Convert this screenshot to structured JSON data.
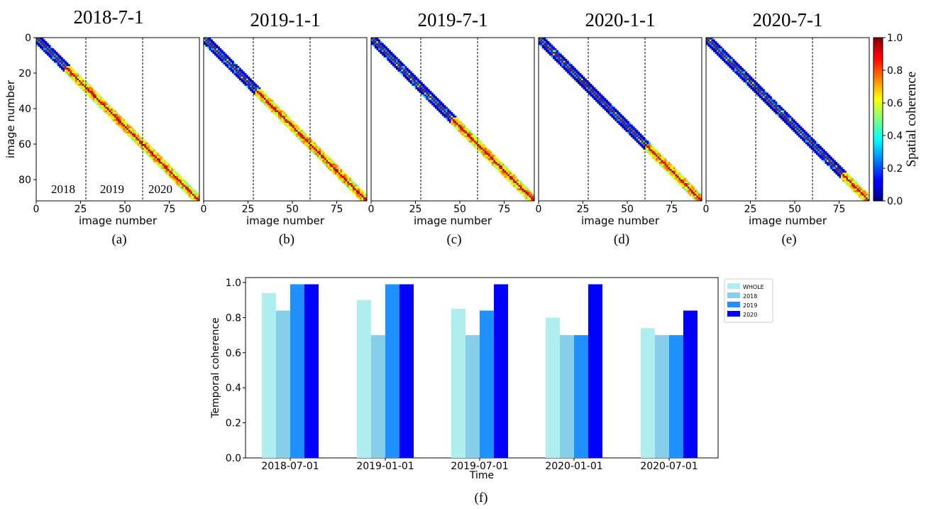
{
  "chart_data": [
    {
      "type": "heatmap",
      "panel": "(a)",
      "title": "2018-7-1",
      "xlabel": "image number",
      "ylabel": "image number",
      "xticks": [
        "0",
        "25",
        "50",
        "75"
      ],
      "yticks": [
        "0",
        "20",
        "40",
        "60",
        "80"
      ],
      "n_images": 92,
      "dashed_lines_at": [
        28,
        60
      ],
      "low_coherence_until": 16,
      "year_labels": [
        "2018",
        "2019",
        "2020"
      ]
    },
    {
      "type": "heatmap",
      "panel": "(b)",
      "title": "2019-1-1",
      "xlabel": "image number",
      "xticks": [
        "0",
        "25",
        "50",
        "75"
      ],
      "n_images": 92,
      "dashed_lines_at": [
        28,
        60
      ],
      "low_coherence_until": 29
    },
    {
      "type": "heatmap",
      "panel": "(c)",
      "title": "2019-7-1",
      "xlabel": "image number",
      "xticks": [
        "0",
        "25",
        "50",
        "75"
      ],
      "n_images": 92,
      "dashed_lines_at": [
        28,
        60
      ],
      "low_coherence_until": 45
    },
    {
      "type": "heatmap",
      "panel": "(d)",
      "title": "2020-1-1",
      "xlabel": "image number",
      "xticks": [
        "0",
        "25",
        "50",
        "75"
      ],
      "n_images": 92,
      "dashed_lines_at": [
        28,
        60
      ],
      "low_coherence_until": 60
    },
    {
      "type": "heatmap",
      "panel": "(e)",
      "title": "2020-7-1",
      "xlabel": "image number",
      "xticks": [
        "0",
        "25",
        "50",
        "75"
      ],
      "n_images": 92,
      "dashed_lines_at": [
        28,
        60
      ],
      "low_coherence_until": 76
    },
    {
      "type": "bar",
      "panel": "(f)",
      "categories": [
        "2018-07-01",
        "2019-01-01",
        "2019-07-01",
        "2020-01-01",
        "2020-07-01"
      ],
      "series": [
        {
          "name": "WHOLE",
          "values": [
            0.94,
            0.9,
            0.85,
            0.8,
            0.74
          ]
        },
        {
          "name": "2018",
          "values": [
            0.84,
            0.7,
            0.7,
            0.7,
            0.7
          ]
        },
        {
          "name": "2019",
          "values": [
            0.99,
            0.99,
            0.84,
            0.7,
            0.7
          ]
        },
        {
          "name": "2020",
          "values": [
            0.99,
            0.99,
            0.99,
            0.99,
            0.84
          ]
        }
      ],
      "colors": [
        "#afeeee",
        "#87ceeb",
        "#1e90ff",
        "#0000ff"
      ],
      "xlabel": "Time",
      "ylabel": "Temporal coherence",
      "ylim": [
        0,
        1.0
      ],
      "yticks": [
        "0.0",
        "0.2",
        "0.4",
        "0.6",
        "0.8",
        "1.0"
      ],
      "legend": "outside-right-top"
    }
  ],
  "colorbar": {
    "label": "Spatial coherence",
    "ticks": [
      "0.0",
      "0.2",
      "0.4",
      "0.6",
      "0.8",
      "1.0"
    ],
    "colormap": "jet"
  }
}
